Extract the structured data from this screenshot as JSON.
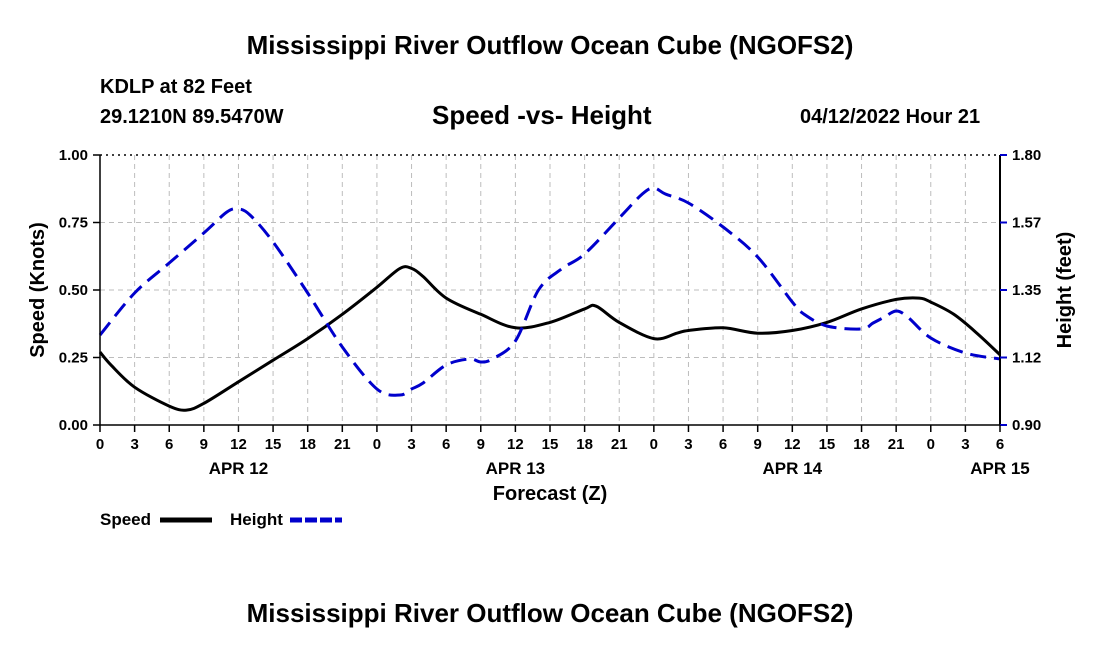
{
  "header": {
    "title": "Mississippi River Outflow Ocean Cube (NGOFS2)",
    "station": "KDLP at 82 Feet",
    "coords": "29.1210N  89.5470W",
    "subtitle": "Speed -vs- Height",
    "datetime": "04/12/2022 Hour 21"
  },
  "footer": {
    "title": "Mississippi River Outflow Ocean Cube (NGOFS2)"
  },
  "chart_data": {
    "type": "line",
    "xlabel": "Forecast (Z)",
    "xlim": [
      0,
      78
    ],
    "grid": true,
    "x_ticks": [
      {
        "x": 0,
        "label": "0"
      },
      {
        "x": 3,
        "label": "3"
      },
      {
        "x": 6,
        "label": "6"
      },
      {
        "x": 9,
        "label": "9"
      },
      {
        "x": 12,
        "label": "12"
      },
      {
        "x": 15,
        "label": "15"
      },
      {
        "x": 18,
        "label": "18"
      },
      {
        "x": 21,
        "label": "21"
      },
      {
        "x": 24,
        "label": "0"
      },
      {
        "x": 27,
        "label": "3"
      },
      {
        "x": 30,
        "label": "6"
      },
      {
        "x": 33,
        "label": "9"
      },
      {
        "x": 36,
        "label": "12"
      },
      {
        "x": 39,
        "label": "15"
      },
      {
        "x": 42,
        "label": "18"
      },
      {
        "x": 45,
        "label": "21"
      },
      {
        "x": 48,
        "label": "0"
      },
      {
        "x": 51,
        "label": "3"
      },
      {
        "x": 54,
        "label": "6"
      },
      {
        "x": 57,
        "label": "9"
      },
      {
        "x": 60,
        "label": "12"
      },
      {
        "x": 63,
        "label": "15"
      },
      {
        "x": 66,
        "label": "18"
      },
      {
        "x": 69,
        "label": "21"
      },
      {
        "x": 72,
        "label": "0"
      },
      {
        "x": 75,
        "label": "3"
      },
      {
        "x": 78,
        "label": "6"
      }
    ],
    "date_labels": [
      {
        "x": 12,
        "label": "APR 12"
      },
      {
        "x": 36,
        "label": "APR 13"
      },
      {
        "x": 60,
        "label": "APR 14"
      },
      {
        "x": 78,
        "label": "APR 15"
      }
    ],
    "y_left": {
      "label": "Speed (Knots)",
      "lim": [
        0,
        1.0
      ],
      "ticks": [
        {
          "v": 0.0,
          "label": "0.00"
        },
        {
          "v": 0.25,
          "label": "0.25"
        },
        {
          "v": 0.5,
          "label": "0.50"
        },
        {
          "v": 0.75,
          "label": "0.75"
        },
        {
          "v": 1.0,
          "label": "1.00"
        }
      ]
    },
    "y_right": {
      "label": "Height (feet)",
      "lim": [
        0.9,
        1.8
      ],
      "ticks": [
        {
          "v": 0.9,
          "label": "0.90"
        },
        {
          "v": 1.125,
          "label": "1.12"
        },
        {
          "v": 1.35,
          "label": "1.35"
        },
        {
          "v": 1.575,
          "label": "1.57"
        },
        {
          "v": 1.8,
          "label": "1.80"
        }
      ]
    },
    "series": [
      {
        "name": "Speed",
        "axis": "left",
        "color": "#000000",
        "style": "solid",
        "x": [
          0,
          1,
          3,
          6,
          7.5,
          9,
          12,
          15,
          18,
          21,
          24,
          26,
          27,
          28,
          30,
          33,
          36,
          39,
          42,
          43,
          45,
          48,
          50,
          51,
          54,
          57,
          60,
          63,
          66,
          69,
          71,
          72,
          74,
          76,
          78
        ],
        "y": [
          0.27,
          0.22,
          0.14,
          0.07,
          0.055,
          0.08,
          0.16,
          0.24,
          0.32,
          0.41,
          0.51,
          0.58,
          0.58,
          0.55,
          0.47,
          0.41,
          0.36,
          0.38,
          0.43,
          0.44,
          0.38,
          0.32,
          0.34,
          0.35,
          0.36,
          0.34,
          0.35,
          0.38,
          0.43,
          0.465,
          0.47,
          0.455,
          0.41,
          0.34,
          0.26
        ]
      },
      {
        "name": "Height",
        "axis": "right",
        "color": "#0000cc",
        "style": "dashed",
        "x": [
          0,
          3,
          6,
          9,
          11,
          12,
          13,
          15,
          18,
          21,
          24,
          26,
          27,
          28,
          30,
          32,
          33,
          34,
          36,
          38,
          40,
          42,
          45,
          47,
          48,
          49,
          51,
          54,
          57,
          60,
          61,
          63,
          66,
          67,
          68,
          69,
          70,
          72,
          75,
          78
        ],
        "y": [
          1.2,
          1.34,
          1.44,
          1.54,
          1.61,
          1.62,
          1.6,
          1.51,
          1.34,
          1.16,
          1.02,
          1.0,
          1.02,
          1.04,
          1.1,
          1.12,
          1.11,
          1.12,
          1.18,
          1.35,
          1.42,
          1.47,
          1.59,
          1.67,
          1.69,
          1.67,
          1.64,
          1.56,
          1.46,
          1.31,
          1.27,
          1.23,
          1.22,
          1.24,
          1.26,
          1.28,
          1.26,
          1.19,
          1.14,
          1.12
        ]
      }
    ],
    "legend": [
      {
        "name": "Speed",
        "color": "#000000",
        "style": "solid"
      },
      {
        "name": "Height",
        "color": "#0000cc",
        "style": "dashed"
      }
    ],
    "legend_position": "bottom-left"
  }
}
